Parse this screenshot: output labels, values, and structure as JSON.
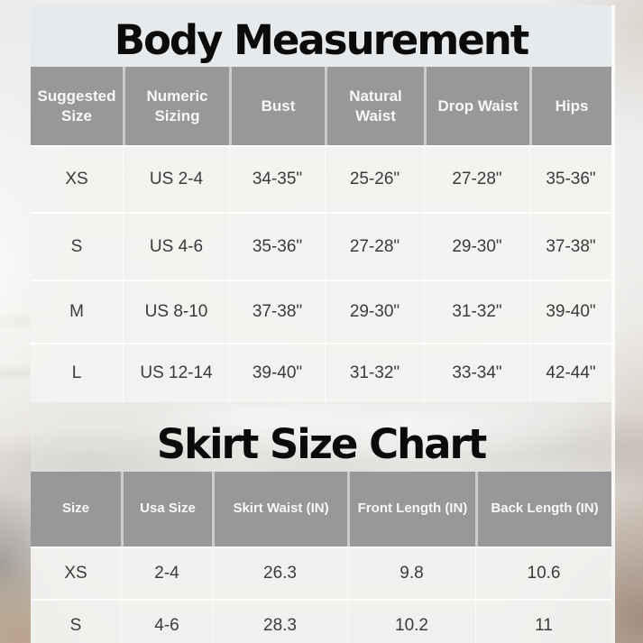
{
  "body_chart": {
    "title": "Body Measurement",
    "columns": [
      "Suggested Size",
      "Numeric Sizing",
      "Bust",
      "Natural Waist",
      "Drop Waist",
      "Hips"
    ],
    "rows": [
      [
        "XS",
        "US 2-4",
        "34-35\"",
        "25-26\"",
        "27-28\"",
        "35-36\""
      ],
      [
        "S",
        "US 4-6",
        "35-36\"",
        "27-28\"",
        "29-30\"",
        "37-38\""
      ],
      [
        "M",
        "US 8-10",
        "37-38\"",
        "29-30\"",
        "31-32\"",
        "39-40\""
      ],
      [
        "L",
        "US 12-14",
        "39-40\"",
        "31-32\"",
        "33-34\"",
        "42-44\""
      ]
    ]
  },
  "skirt_chart": {
    "title": "Skirt Size Chart",
    "columns": [
      "Size",
      "Usa Size",
      "Skirt Waist (IN)",
      "Front Length (IN)",
      "Back Length (IN)"
    ],
    "rows": [
      [
        "XS",
        "2-4",
        "26.3",
        "9.8",
        "10.6"
      ],
      [
        "S",
        "4-6",
        "28.3",
        "10.2",
        "11"
      ]
    ]
  },
  "colors": {
    "header_bg": "#98989a",
    "row_bg": "#f3f2f0",
    "title_text": "#0b0b0b",
    "header_text": "#f7f7f7",
    "cell_text": "#3b3b3b"
  }
}
